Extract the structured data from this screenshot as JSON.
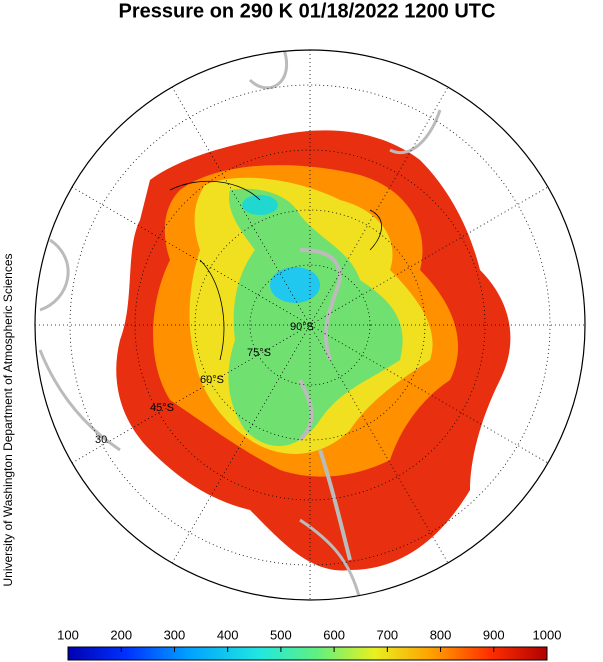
{
  "map": {
    "title": "Pressure on 290 K 01/18/2022 1200 UTC",
    "credit": "University of Washington Department of Atmospheric Sciences",
    "latitude_labels": [
      "30",
      "45°S",
      "60°S",
      "75°S",
      "90°S"
    ],
    "colorbar": {
      "lim": [
        100,
        1000
      ],
      "ticks": [
        100,
        200,
        300,
        400,
        500,
        600,
        700,
        800,
        900,
        1000
      ]
    }
  }
}
